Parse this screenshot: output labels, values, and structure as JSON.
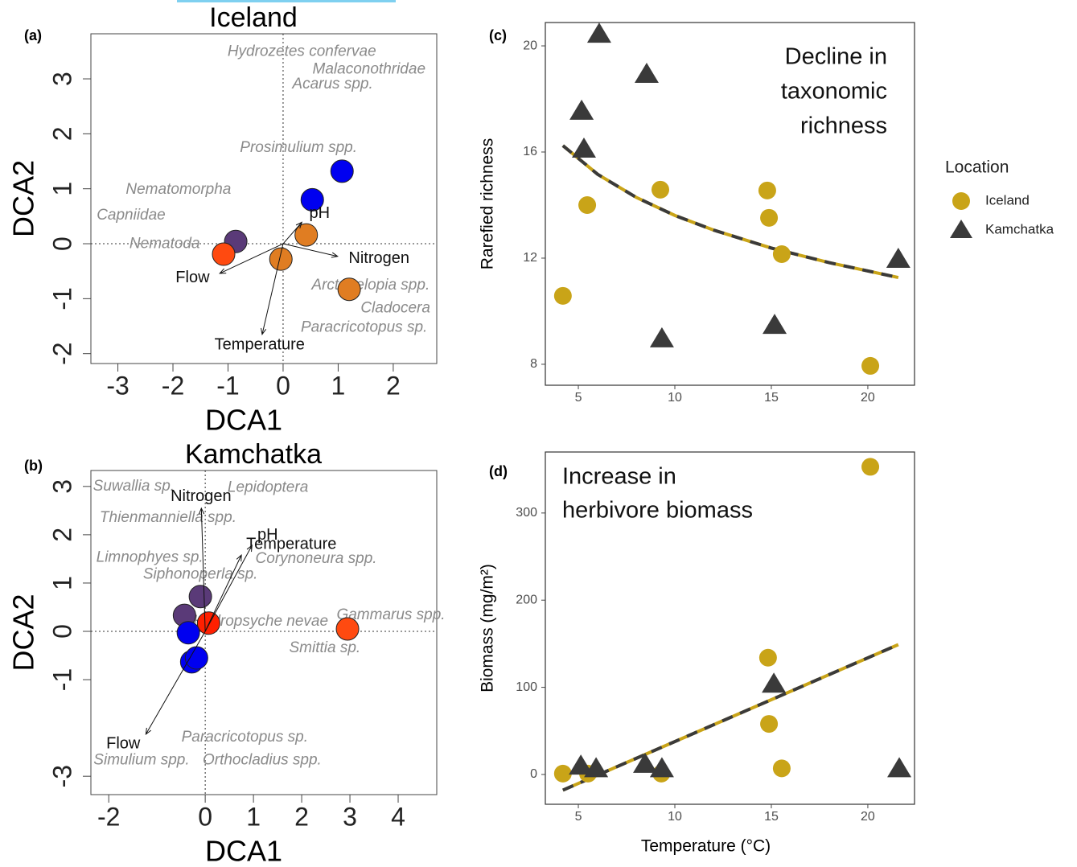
{
  "chart_data": [
    {
      "type": "scatter",
      "panel": "(a)",
      "title": "Iceland",
      "xlabel": "DCA1",
      "ylabel": "DCA2",
      "xlim": [
        -3.49,
        2.79
      ],
      "ylim": [
        -2.18,
        3.82
      ],
      "xticks": [
        -3,
        -2,
        -1,
        0,
        1,
        2
      ],
      "yticks": [
        -2,
        -1,
        0,
        1,
        2,
        3
      ],
      "zero_lines": true,
      "series": [
        {
          "x": [
            1.07,
            0.53,
            -0.86,
            -1.08,
            0.42,
            -0.04,
            1.2
          ],
          "values": [
            1.32,
            0.8,
            0.04,
            -0.19,
            0.16,
            -0.28,
            -0.83
          ],
          "colors": [
            "#0000f0",
            "#0000f0",
            "#5a3a78",
            "#ff4a10",
            "#e07d22",
            "#e07d22",
            "#e07d22"
          ]
        }
      ],
      "arrows": [
        {
          "label": "pH",
          "x": 0.34,
          "y": 0.39
        },
        {
          "label": "Nitrogen",
          "x": 0.99,
          "y": -0.23
        },
        {
          "label": "Flow",
          "x": -1.15,
          "y": -0.54
        },
        {
          "label": "Temperature",
          "x": -0.38,
          "y": -1.65
        }
      ],
      "species": [
        {
          "label": "Hydrozetes confervae",
          "x": 0.34,
          "y": 3.49
        },
        {
          "label": "Malaconothridae",
          "x": 1.56,
          "y": 3.17
        },
        {
          "label": "Acarus spp.",
          "x": 0.9,
          "y": 2.9
        },
        {
          "label": "Prosimulium spp.",
          "x": 0.28,
          "y": 1.74
        },
        {
          "label": "Nematomorpha",
          "x": -1.9,
          "y": 0.98
        },
        {
          "label": "Capniidae",
          "x": -2.76,
          "y": 0.51
        },
        {
          "label": "Nematoda",
          "x": -2.15,
          "y": -0.01
        },
        {
          "label": "Arctopelopia spp.",
          "x": 1.59,
          "y": -0.76
        },
        {
          "label": "Cladocera",
          "x": 2.04,
          "y": -1.18
        },
        {
          "label": "Paracricotopus sp.",
          "x": 1.47,
          "y": -1.53
        }
      ]
    },
    {
      "type": "scatter",
      "panel": "(b)",
      "title": "Kamchatka",
      "xlabel": "DCA1",
      "ylabel": "DCA2",
      "xlim": [
        -2.37,
        4.8
      ],
      "ylim": [
        -3.38,
        3.33
      ],
      "xticks": [
        -2,
        0,
        1,
        2,
        3,
        4
      ],
      "yticks": [
        -3,
        -1,
        0,
        1,
        2,
        3
      ],
      "zero_lines": true,
      "series": [
        {
          "x": [
            -0.1,
            -0.43,
            0.07,
            -0.35,
            -0.28,
            -0.18,
            2.95
          ],
          "values": [
            0.72,
            0.33,
            0.17,
            -0.03,
            -0.63,
            -0.55,
            0.05
          ],
          "colors": [
            "#5a3a78",
            "#5a3a78",
            "#ff2000",
            "#0000f0",
            "#0000f0",
            "#0000f0",
            "#ff4a10"
          ]
        }
      ],
      "arrows": [
        {
          "label": "Nitrogen",
          "x": -0.08,
          "y": 2.55
        },
        {
          "label": "Temperature",
          "x": 0.75,
          "y": 1.58
        },
        {
          "label": "pH",
          "x": 0.97,
          "y": 1.78
        },
        {
          "label": "Flow",
          "x": -1.23,
          "y": -2.13
        }
      ],
      "species": [
        {
          "label": "Suwallia sp.",
          "x": -1.48,
          "y": 3.0
        },
        {
          "label": "Lepidoptera",
          "x": 1.3,
          "y": 2.97
        },
        {
          "label": "Thienmanniella spp.",
          "x": -0.77,
          "y": 2.35
        },
        {
          "label": "Limnophyes sp.",
          "x": -1.15,
          "y": 1.52
        },
        {
          "label": "Corynoneura spp.",
          "x": 2.3,
          "y": 1.5
        },
        {
          "label": "Siphonoperla sp.",
          "x": -0.1,
          "y": 1.17
        },
        {
          "label": "Hydropsyche nevae",
          "x": 1.15,
          "y": 0.2
        },
        {
          "label": "Gammarus spp.",
          "x": 3.85,
          "y": 0.33
        },
        {
          "label": "Smittia sp.",
          "x": 2.48,
          "y": -0.35
        },
        {
          "label": "Paracricotopus sp.",
          "x": 0.82,
          "y": -2.2
        },
        {
          "label": "Simulium spp.",
          "x": -1.32,
          "y": -2.67
        },
        {
          "label": "Orthocladius spp.",
          "x": 1.18,
          "y": -2.67
        }
      ]
    },
    {
      "type": "scatter",
      "panel": "(c)",
      "ylabel": "Rarefied richness",
      "xlim": [
        3.29,
        22.42
      ],
      "ylim": [
        7.21,
        20.88
      ],
      "xticks": [
        5,
        10,
        15,
        20
      ],
      "yticks": [
        8,
        12,
        16,
        20
      ],
      "annotation": [
        "Decline in",
        "taxonomic",
        "richness"
      ],
      "legend": true,
      "legend_title": "Location",
      "series": [
        {
          "name": "Iceland",
          "color": "#c9a418",
          "marker": "circle",
          "x": [
            4.2,
            5.46,
            9.25,
            14.79,
            14.88,
            15.54,
            20.13
          ],
          "values": [
            10.58,
            14.0,
            14.58,
            14.55,
            13.52,
            12.15,
            7.94
          ]
        },
        {
          "name": "Kamchatka",
          "color": "#3a3a3a",
          "marker": "triangle",
          "x": [
            6.08,
            5.17,
            5.29,
            8.54,
            9.33,
            15.17,
            21.58
          ],
          "values": [
            20.45,
            17.55,
            16.12,
            18.94,
            8.97,
            9.48,
            11.97
          ]
        }
      ],
      "fit": {
        "x": [
          4.2,
          6,
          8,
          10,
          12,
          15,
          18,
          21.58
        ],
        "values": [
          16.24,
          15.16,
          14.29,
          13.61,
          13.06,
          12.38,
          11.83,
          11.27
        ],
        "colors": [
          "#c9a418",
          "#3a3a3a"
        ]
      }
    },
    {
      "type": "scatter",
      "panel": "(d)",
      "xlabel": "Temperature (°C)",
      "ylabel": "Biomass (mg/m²)",
      "xlim": [
        3.29,
        22.42
      ],
      "ylim": [
        -34.2,
        370
      ],
      "xticks": [
        5,
        10,
        15,
        20
      ],
      "yticks": [
        0,
        100,
        200,
        300
      ],
      "annotation": [
        "Increase in",
        "herbivore biomass"
      ],
      "legend": false,
      "series": [
        {
          "name": "Iceland",
          "color": "#c9a418",
          "marker": "circle",
          "x": [
            4.2,
            5.5,
            9.3,
            14.83,
            14.88,
            15.54,
            20.13
          ],
          "values": [
            1,
            1,
            1,
            134,
            58,
            7,
            353
          ]
        },
        {
          "name": "Kamchatka",
          "color": "#3a3a3a",
          "marker": "triangle",
          "x": [
            5.13,
            5.92,
            8.46,
            9.33,
            15.13,
            21.63
          ],
          "values": [
            10,
            7,
            12,
            7,
            104,
            7
          ]
        }
      ],
      "fit": {
        "x": [
          4.2,
          21.58
        ],
        "values": [
          -18,
          149
        ],
        "colors": [
          "#c9a418",
          "#3a3a3a"
        ]
      }
    }
  ]
}
